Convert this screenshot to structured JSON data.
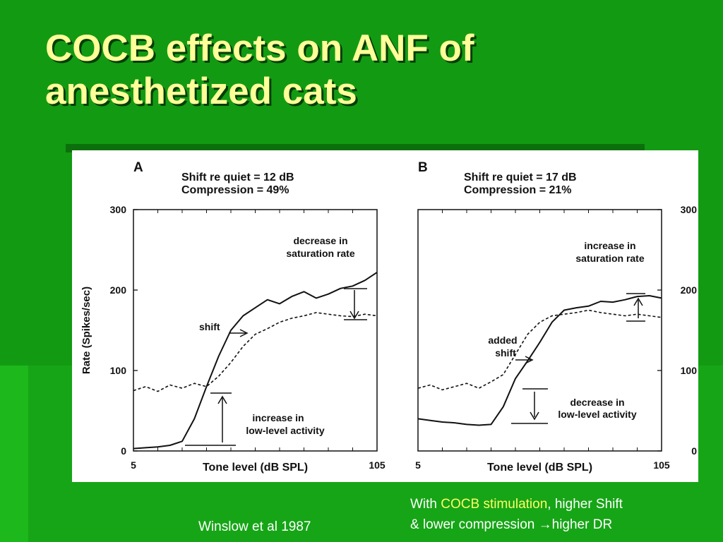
{
  "slide": {
    "title_line1": "COCB effects on ANF of",
    "title_line2": "anesthetized cats",
    "citation": "Winslow et al 1987",
    "caption": {
      "part1": "With ",
      "highlight": "COCB stimulation",
      "part2": ", higher Shift",
      "line2": "& lower compression ",
      "arrow": "→",
      "line2_end": "higher DR"
    },
    "colors": {
      "background": "#139a13",
      "title": "#ffff99",
      "highlight": "#ffff66",
      "text": "#ffffff"
    }
  },
  "chart_data": [
    {
      "type": "line",
      "panel": "A",
      "header_line1": "Shift re quiet = 12 dB",
      "header_line2": "Compression = 49%",
      "xlabel": "Tone level (dB SPL)",
      "ylabel": "Rate (Spikes/sec)",
      "xlim": [
        5,
        105
      ],
      "ylim": [
        0,
        300
      ],
      "x_ticks": [
        "5",
        "105"
      ],
      "y_ticks": [
        "0",
        "100",
        "200",
        "300"
      ],
      "y_axis_side": "left",
      "annotations": [
        "decrease in",
        "saturation rate",
        "shift",
        "increase in",
        "low-level activity"
      ],
      "series": [
        {
          "style": "solid",
          "x": [
            5,
            10,
            15,
            20,
            25,
            30,
            35,
            40,
            45,
            50,
            55,
            60,
            65,
            70,
            75,
            80,
            85,
            90,
            95,
            100,
            105
          ],
          "values": [
            3,
            4,
            5,
            7,
            12,
            40,
            80,
            118,
            150,
            168,
            178,
            188,
            183,
            192,
            198,
            190,
            195,
            202,
            205,
            212,
            222
          ]
        },
        {
          "style": "dashed",
          "x": [
            5,
            10,
            15,
            20,
            25,
            30,
            35,
            40,
            45,
            50,
            55,
            60,
            65,
            70,
            75,
            80,
            85,
            90,
            95,
            100,
            105
          ],
          "values": [
            75,
            80,
            74,
            82,
            78,
            84,
            80,
            93,
            110,
            130,
            145,
            152,
            160,
            165,
            168,
            172,
            170,
            168,
            167,
            170,
            168
          ]
        }
      ]
    },
    {
      "type": "line",
      "panel": "B",
      "header_line1": "Shift re quiet = 17 dB",
      "header_line2": "Compression = 21%",
      "xlabel": "Tone level (dB SPL)",
      "ylabel": "",
      "xlim": [
        5,
        105
      ],
      "ylim": [
        0,
        300
      ],
      "x_ticks": [
        "5",
        "105"
      ],
      "y_ticks": [
        "0",
        "100",
        "200",
        "300"
      ],
      "y_axis_side": "right",
      "annotations": [
        "increase in",
        "saturation rate",
        "added",
        "shift",
        "decrease in",
        "low-level activity"
      ],
      "series": [
        {
          "style": "solid",
          "x": [
            5,
            10,
            15,
            20,
            25,
            30,
            35,
            40,
            45,
            50,
            55,
            60,
            65,
            70,
            75,
            80,
            85,
            90,
            95,
            100,
            105
          ],
          "values": [
            40,
            38,
            36,
            35,
            33,
            32,
            33,
            55,
            90,
            112,
            135,
            160,
            175,
            178,
            180,
            186,
            185,
            188,
            192,
            193,
            190
          ]
        },
        {
          "style": "dashed",
          "x": [
            5,
            10,
            15,
            20,
            25,
            30,
            35,
            40,
            45,
            50,
            55,
            60,
            65,
            70,
            75,
            80,
            85,
            90,
            95,
            100,
            105
          ],
          "values": [
            78,
            82,
            76,
            80,
            84,
            78,
            86,
            95,
            120,
            145,
            160,
            168,
            170,
            172,
            175,
            172,
            170,
            168,
            170,
            168,
            166
          ]
        }
      ]
    }
  ]
}
